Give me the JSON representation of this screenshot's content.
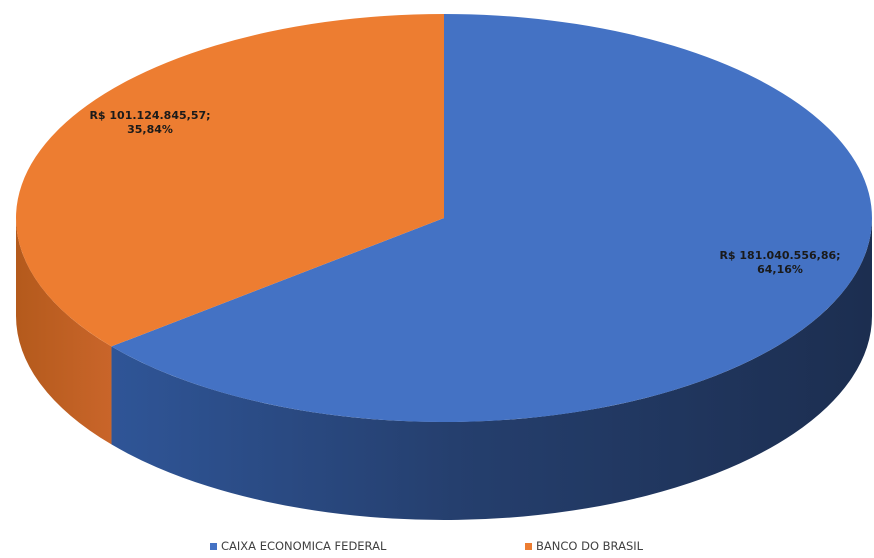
{
  "chart_data": {
    "type": "pie",
    "title": "",
    "three_d": true,
    "legend_position": "bottom",
    "series": [
      {
        "name": "CAIXA ECONOMICA FEDERAL",
        "value": 181040556.86,
        "percent": 64.16,
        "value_label": "R$ 181.040.556,86;",
        "percent_label": "64,16%",
        "color": "#4472C4"
      },
      {
        "name": "BANCO DO BRASIL",
        "value": 101124845.57,
        "percent": 35.84,
        "value_label": "R$ 101.124.845,57;",
        "percent_label": "35,84%",
        "color": "#ED7D31"
      }
    ],
    "legend": [
      "CAIXA ECONOMICA FEDERAL",
      "BANCO DO BRASIL"
    ]
  }
}
